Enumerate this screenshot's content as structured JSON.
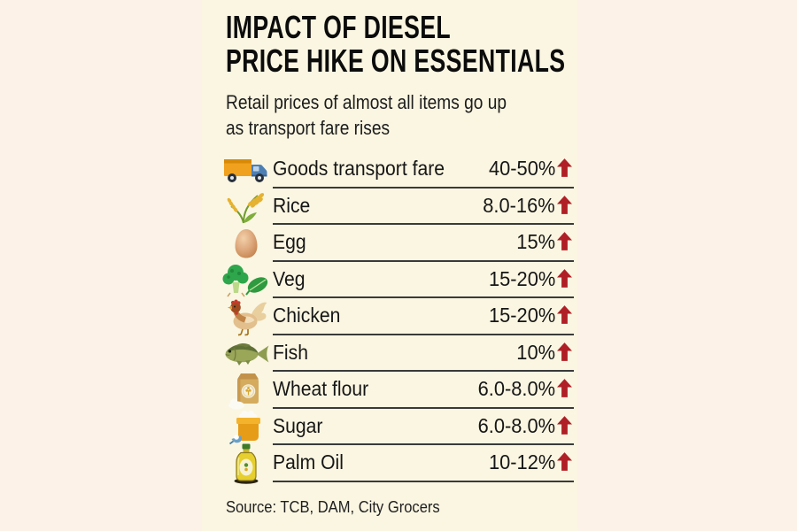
{
  "header": {
    "title_line1": "IMPACT OF DIESEL",
    "title_line2": "PRICE HIKE ON ESSENTIALS",
    "subtitle_line1": "Retail prices of almost all items go up",
    "subtitle_line2": "as transport fare rises"
  },
  "source": "Source: TCB, DAM, City Grocers",
  "colors": {
    "background": "#fdf2e8",
    "panel": "#faf6e2",
    "text": "#161616",
    "accent_red": "#b01f26",
    "divider": "#3a3a3a"
  },
  "chart_data": {
    "type": "table",
    "title": "IMPACT OF DIESEL PRICE HIKE ON ESSENTIALS",
    "subtitle": "Retail prices of almost all items go up as transport fare rises",
    "columns": [
      "item",
      "price_increase",
      "direction"
    ],
    "rows": [
      {
        "icon": "truck-icon",
        "item": "Goods transport fare",
        "value": "40-50%",
        "min_pct": 40,
        "max_pct": 50,
        "direction": "up"
      },
      {
        "icon": "rice-icon",
        "item": "Rice",
        "value": "8.0-16%",
        "min_pct": 8.0,
        "max_pct": 16,
        "direction": "up"
      },
      {
        "icon": "egg-icon",
        "item": "Egg",
        "value": "15%",
        "min_pct": 15,
        "max_pct": 15,
        "direction": "up"
      },
      {
        "icon": "vegetables-icon",
        "item": "Veg",
        "value": "15-20%",
        "min_pct": 15,
        "max_pct": 20,
        "direction": "up"
      },
      {
        "icon": "chicken-icon",
        "item": "Chicken",
        "value": "15-20%",
        "min_pct": 15,
        "max_pct": 20,
        "direction": "up"
      },
      {
        "icon": "fish-icon",
        "item": "Fish",
        "value": "10%",
        "min_pct": 10,
        "max_pct": 10,
        "direction": "up"
      },
      {
        "icon": "flour-sack-icon",
        "item": "Wheat flour",
        "value": "6.0-8.0%",
        "min_pct": 6.0,
        "max_pct": 8.0,
        "direction": "up"
      },
      {
        "icon": "sugar-bag-icon",
        "item": "Sugar",
        "value": "6.0-8.0%",
        "min_pct": 6.0,
        "max_pct": 8.0,
        "direction": "up"
      },
      {
        "icon": "oil-bottle-icon",
        "item": "Palm Oil",
        "value": "10-12%",
        "min_pct": 10,
        "max_pct": 12,
        "direction": "up"
      }
    ],
    "source": "Source: TCB, DAM, City Grocers"
  }
}
